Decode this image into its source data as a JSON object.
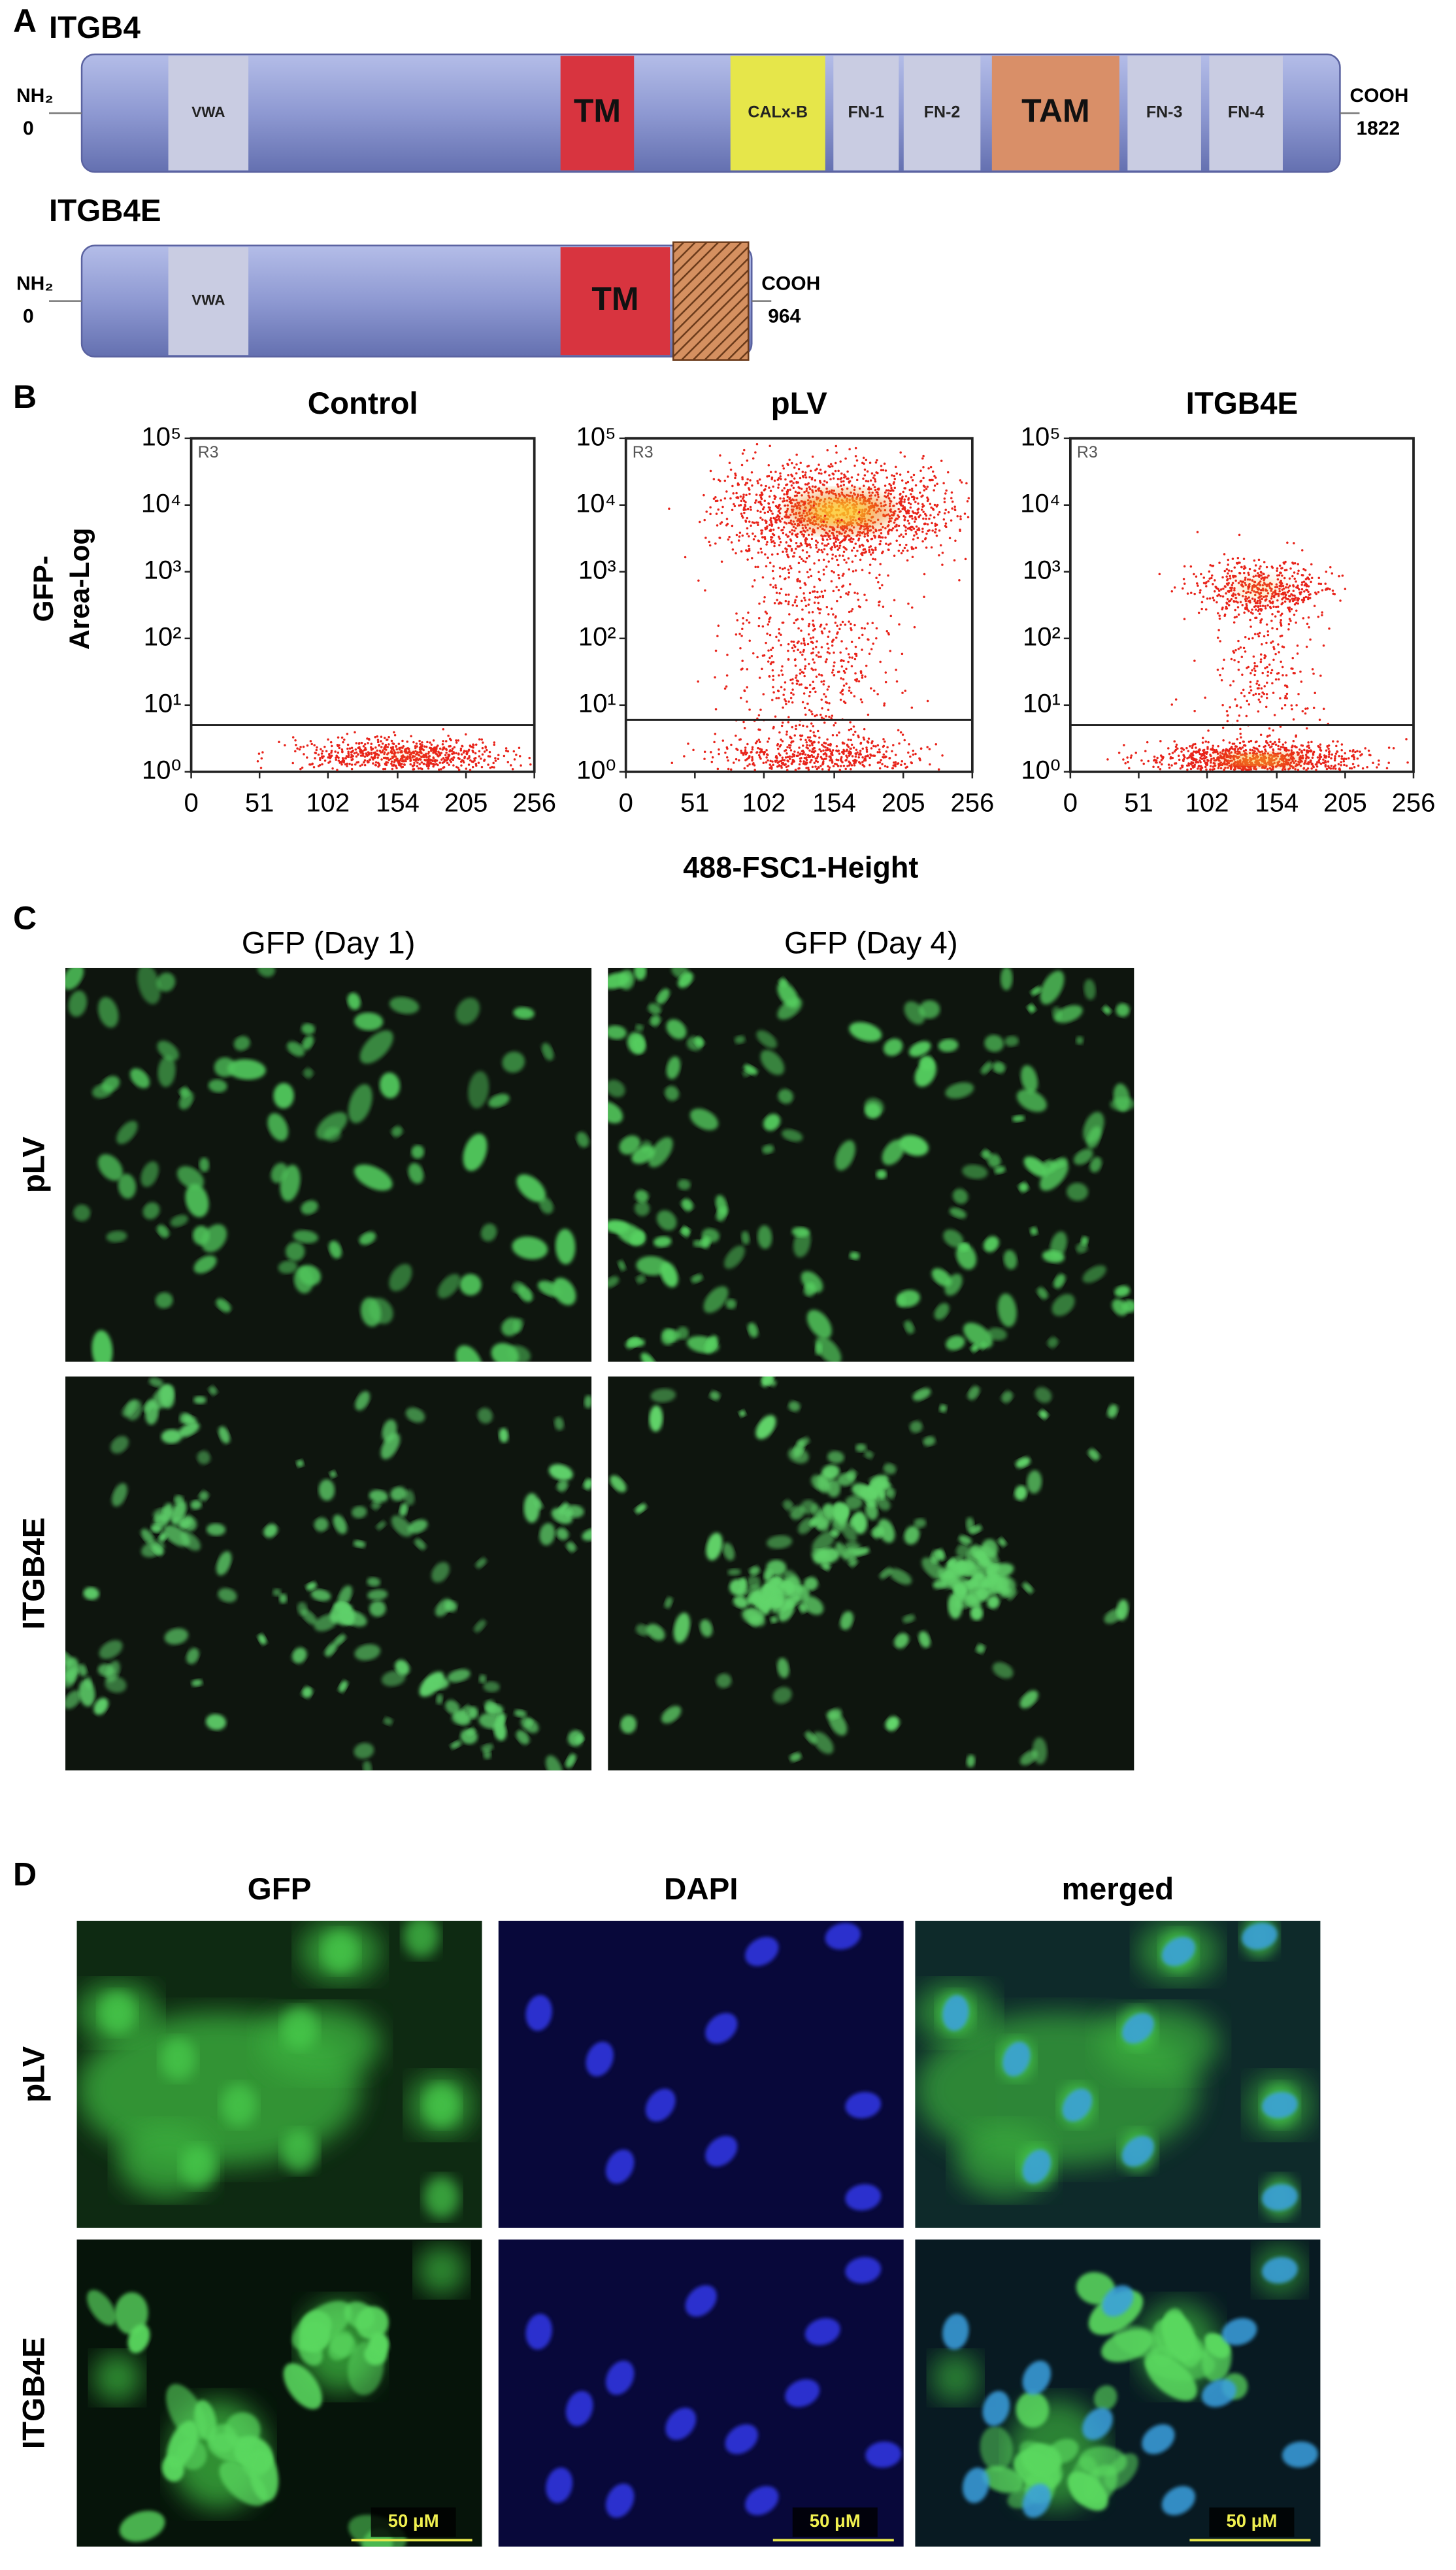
{
  "panel_a": {
    "label": "A",
    "proteins": [
      {
        "name": "ITGB4",
        "n_term": "NH₂",
        "start": 0,
        "c_term": "COOH",
        "end": 1822,
        "domains": [
          "VWA",
          "TM",
          "CALx-B",
          "FN-1",
          "FN-2",
          "TAM",
          "FN-3",
          "FN-4"
        ]
      },
      {
        "name": "ITGB4E",
        "n_term": "NH₂",
        "start": 0,
        "c_term": "COOH",
        "end": 964,
        "domains": [
          "VWA",
          "TM"
        ]
      }
    ]
  },
  "panel_b": {
    "label": "B",
    "y_label": [
      "GFP-",
      "Area-Log"
    ],
    "x_label": "488-FSC1-Height",
    "charts": [
      {
        "type": "scatter",
        "title": "Control",
        "gate_name": "R3",
        "gate": 5,
        "xlim": [
          0,
          256
        ],
        "xticks": [
          0,
          51,
          102,
          154,
          205,
          256
        ],
        "yscale": "log",
        "ylim": [
          1,
          100000
        ],
        "yticks": [
          {
            "value": 1,
            "label": "10⁰"
          },
          {
            "value": 10,
            "label": "10¹"
          },
          {
            "value": 100,
            "label": "10²"
          },
          {
            "value": 1000,
            "label": "10³"
          },
          {
            "value": 10000,
            "label": "10⁴"
          },
          {
            "value": 100000,
            "label": "10⁵"
          }
        ]
      },
      {
        "type": "scatter",
        "title": "pLV",
        "gate_name": "R3",
        "gate": 6,
        "xlim": [
          0,
          256
        ],
        "xticks": [
          0,
          51,
          102,
          154,
          205,
          256
        ],
        "yscale": "log",
        "ylim": [
          1,
          100000
        ],
        "yticks": [
          {
            "value": 1,
            "label": "10⁰"
          },
          {
            "value": 10,
            "label": "10¹"
          },
          {
            "value": 100,
            "label": "10²"
          },
          {
            "value": 1000,
            "label": "10³"
          },
          {
            "value": 10000,
            "label": "10⁴"
          },
          {
            "value": 100000,
            "label": "10⁵"
          }
        ]
      },
      {
        "type": "scatter",
        "title": "ITGB4E",
        "gate_name": "R3",
        "gate": 5,
        "xlim": [
          0,
          256
        ],
        "xticks": [
          0,
          51,
          102,
          154,
          205,
          256
        ],
        "yscale": "log",
        "ylim": [
          1,
          100000
        ],
        "yticks": [
          {
            "value": 1,
            "label": "10⁰"
          },
          {
            "value": 10,
            "label": "10¹"
          },
          {
            "value": 100,
            "label": "10²"
          },
          {
            "value": 1000,
            "label": "10³"
          },
          {
            "value": 10000,
            "label": "10⁴"
          },
          {
            "value": 100000,
            "label": "10⁵"
          }
        ]
      }
    ]
  },
  "panel_c": {
    "label": "C",
    "columns": [
      "GFP (Day 1)",
      "GFP (Day 4)"
    ],
    "rows": [
      "pLV",
      "ITGB4E"
    ]
  },
  "panel_d": {
    "label": "D",
    "columns": [
      "GFP",
      "DAPI",
      "merged"
    ],
    "rows": [
      "pLV",
      "ITGB4E"
    ],
    "scale_bar": "50 μM"
  }
}
